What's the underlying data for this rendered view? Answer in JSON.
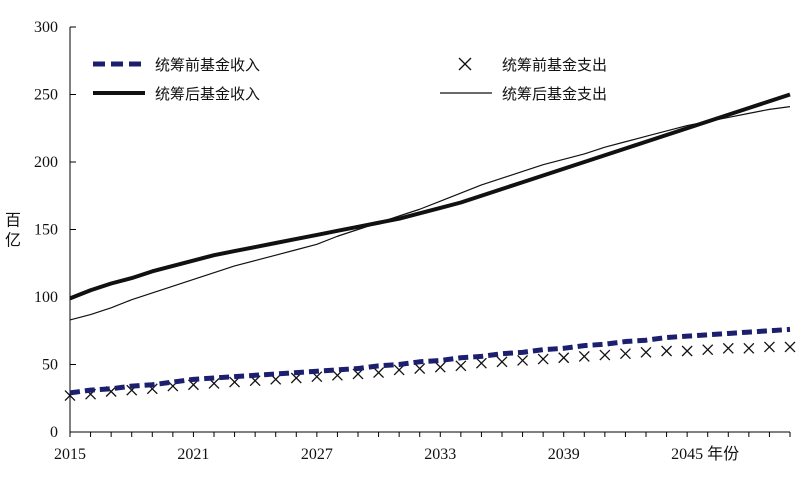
{
  "chart_data": {
    "type": "line",
    "xlabel": "年份",
    "ylabel": "百亿",
    "xlim": [
      2015,
      2050
    ],
    "ylim": [
      0,
      300
    ],
    "x_ticks": [
      "2015",
      "2021",
      "2027",
      "2033",
      "2039",
      "2045"
    ],
    "y_ticks": [
      "0",
      "50",
      "100",
      "150",
      "200",
      "250",
      "300"
    ],
    "x": [
      2015,
      2016,
      2017,
      2018,
      2019,
      2020,
      2021,
      2022,
      2023,
      2024,
      2025,
      2026,
      2027,
      2028,
      2029,
      2030,
      2031,
      2032,
      2033,
      2034,
      2035,
      2036,
      2037,
      2038,
      2039,
      2040,
      2041,
      2042,
      2043,
      2044,
      2045,
      2046,
      2047,
      2048,
      2049,
      2050
    ],
    "series": [
      {
        "name": "统筹前基金收入",
        "style": "dashed",
        "color": "#1c1f6e",
        "values": [
          29,
          31,
          32,
          34,
          35,
          37,
          39,
          40,
          41,
          42,
          43,
          44,
          45,
          46,
          47,
          49,
          50,
          52,
          53,
          55,
          56,
          58,
          59,
          61,
          62,
          64,
          65,
          67,
          68,
          70,
          71,
          72,
          73,
          74,
          75,
          76
        ]
      },
      {
        "name": "统筹前基金支出",
        "style": "markers",
        "color": "#111111",
        "values": [
          27,
          28,
          30,
          31,
          32,
          34,
          35,
          36,
          37,
          38,
          39,
          40,
          41,
          42,
          43,
          44,
          46,
          47,
          48,
          49,
          51,
          52,
          53,
          54,
          55,
          56,
          57,
          58,
          59,
          60,
          60,
          61,
          62,
          62,
          63,
          63
        ]
      },
      {
        "name": "统筹后基金收入",
        "style": "thick",
        "color": "#111111",
        "values": [
          99,
          105,
          110,
          114,
          119,
          123,
          127,
          131,
          134,
          137,
          140,
          143,
          146,
          149,
          152,
          155,
          158,
          162,
          166,
          170,
          175,
          180,
          185,
          190,
          195,
          200,
          205,
          210,
          215,
          220,
          225,
          230,
          235,
          240,
          245,
          250
        ]
      },
      {
        "name": "统筹后基金支出",
        "style": "thin",
        "color": "#111111",
        "values": [
          83,
          87,
          92,
          98,
          103,
          108,
          113,
          118,
          123,
          127,
          131,
          135,
          139,
          145,
          150,
          155,
          160,
          165,
          171,
          177,
          183,
          188,
          193,
          198,
          202,
          206,
          211,
          215,
          219,
          223,
          227,
          230,
          233,
          236,
          239,
          241
        ]
      }
    ],
    "legend_position": "top-left",
    "grid": false
  }
}
